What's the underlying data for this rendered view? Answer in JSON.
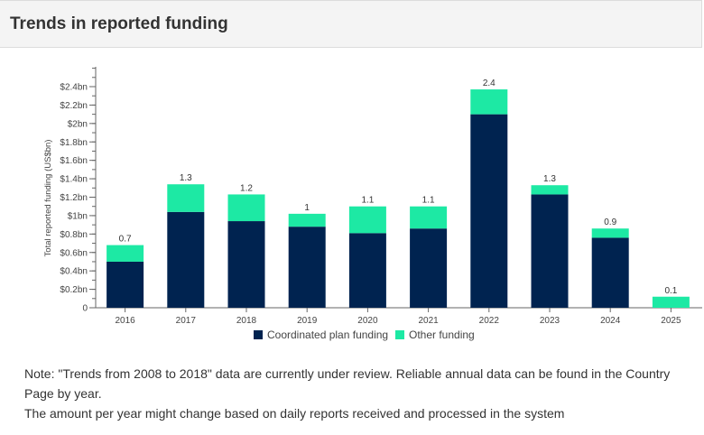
{
  "header": {
    "title": "Trends in reported funding"
  },
  "chart_data": {
    "type": "bar",
    "stacked": true,
    "categories": [
      "2016",
      "2017",
      "2018",
      "2019",
      "2020",
      "2021",
      "2022",
      "2023",
      "2024",
      "2025"
    ],
    "series": [
      {
        "name": "Coordinated plan funding",
        "color": "#002350",
        "values": [
          0.5,
          1.04,
          0.94,
          0.88,
          0.81,
          0.86,
          2.1,
          1.23,
          0.76,
          0.0
        ]
      },
      {
        "name": "Other funding",
        "color": "#1de9a4",
        "values": [
          0.18,
          0.3,
          0.29,
          0.14,
          0.29,
          0.24,
          0.27,
          0.1,
          0.1,
          0.12
        ]
      }
    ],
    "totals_labels": [
      "0.7",
      "1.3",
      "1.2",
      "1",
      "1.1",
      "1.1",
      "2.4",
      "1.3",
      "0.9",
      "0.1"
    ],
    "ylabel": "Total reported funding (US$bn)",
    "yticks": [
      {
        "value": 0,
        "label": "0"
      },
      {
        "value": 0.2,
        "label": "$0.2bn"
      },
      {
        "value": 0.4,
        "label": "$0.4bn"
      },
      {
        "value": 0.6,
        "label": "$0.6bn"
      },
      {
        "value": 0.8,
        "label": "$0.8bn"
      },
      {
        "value": 1.0,
        "label": "$1bn"
      },
      {
        "value": 1.2,
        "label": "$1.2bn"
      },
      {
        "value": 1.4,
        "label": "$1.4bn"
      },
      {
        "value": 1.6,
        "label": "$1.6bn"
      },
      {
        "value": 1.8,
        "label": "$1.8bn"
      },
      {
        "value": 2.0,
        "label": "$2bn"
      },
      {
        "value": 2.2,
        "label": "$2.2bn"
      },
      {
        "value": 2.4,
        "label": "$2.4bn"
      }
    ],
    "ylim": [
      0,
      2.6
    ],
    "grid": false,
    "legend_position": "bottom"
  },
  "note": {
    "line1": "Note: \"Trends from 2008 to 2018\" data are currently under review. Reliable annual data can be found in the Country Page by year.",
    "line2": "The amount per year might change based on daily reports received and processed in the system"
  }
}
